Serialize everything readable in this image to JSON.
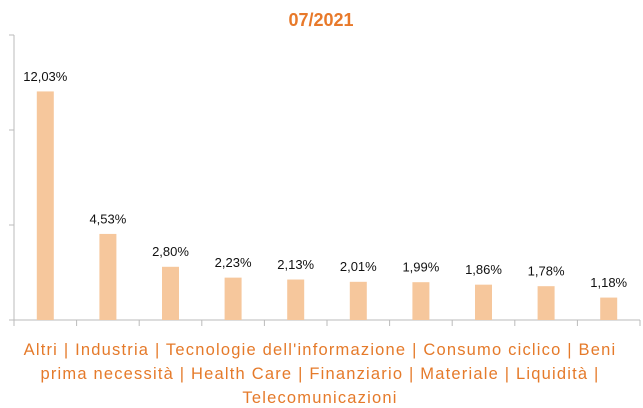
{
  "chart_data": {
    "type": "bar",
    "title": "07/2021",
    "values": [
      12.03,
      4.53,
      2.8,
      2.23,
      2.13,
      2.01,
      1.99,
      1.86,
      1.78,
      1.18
    ],
    "value_labels": [
      "12,03%",
      "4,53%",
      "2,80%",
      "2,23%",
      "2,13%",
      "2,01%",
      "1,99%",
      "1,86%",
      "1,78%",
      "1,18%"
    ],
    "color": "#f6c79c",
    "ylim": [
      0,
      15
    ],
    "yticks": [
      0,
      5,
      10,
      15
    ],
    "caption": "Altri | Industria | Tecnologie dell'informazione | Consumo ciclico | Beni prima necessità | Health Care | Finanziario | Materiale | Liquidità | Telecomunicazioni"
  }
}
